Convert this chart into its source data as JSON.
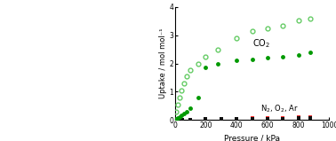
{
  "xlabel": "Pressure / kPa",
  "ylabel": "Uptake / mol mol⁻¹",
  "xlim": [
    0,
    1000
  ],
  "ylim": [
    0,
    4
  ],
  "yticks": [
    0,
    1,
    2,
    3,
    4
  ],
  "xticks": [
    0,
    200,
    400,
    600,
    800,
    1000
  ],
  "co2_ads_x": [
    10,
    20,
    30,
    40,
    60,
    80,
    100,
    150,
    200,
    280,
    400,
    500,
    600,
    700,
    800,
    875
  ],
  "co2_ads_y": [
    0.03,
    0.06,
    0.1,
    0.15,
    0.22,
    0.3,
    0.4,
    0.8,
    1.85,
    2.0,
    2.1,
    2.15,
    2.2,
    2.25,
    2.3,
    2.4
  ],
  "co2_des_x": [
    10,
    20,
    30,
    40,
    60,
    80,
    100,
    150,
    200,
    280,
    400,
    500,
    600,
    700,
    800,
    875
  ],
  "co2_des_y": [
    0.3,
    0.55,
    0.8,
    1.05,
    1.3,
    1.55,
    1.78,
    2.0,
    2.25,
    2.5,
    2.9,
    3.15,
    3.25,
    3.35,
    3.52,
    3.6
  ],
  "n2_x": [
    50,
    100,
    200,
    300,
    400,
    500,
    600,
    700,
    800,
    875
  ],
  "n2_y": [
    0.01,
    0.02,
    0.03,
    0.04,
    0.04,
    0.05,
    0.06,
    0.07,
    0.07,
    0.08
  ],
  "o2_x": [
    50,
    100,
    200,
    300,
    400,
    500,
    600,
    700,
    800,
    875
  ],
  "o2_y": [
    0.01,
    0.02,
    0.03,
    0.04,
    0.05,
    0.06,
    0.07,
    0.08,
    0.09,
    0.1
  ],
  "ar_x": [
    50,
    100,
    200,
    300,
    400,
    500,
    600,
    700,
    800,
    875
  ],
  "ar_y": [
    0.01,
    0.02,
    0.03,
    0.03,
    0.04,
    0.04,
    0.05,
    0.05,
    0.06,
    0.06
  ],
  "co2_color": "#009900",
  "co2_des_color": "#66cc66",
  "n2_color": "#cc0000",
  "o2_color": "#ff3333",
  "ar_color": "#111111",
  "bg_color": "#ffffff",
  "annotation_co2": "CO$_2$",
  "annotation_n2o2ar": "N$_2$, O$_2$, Ar",
  "co2_ann_x": 560,
  "co2_ann_y": 2.72,
  "n2o2ar_ann_x": 680,
  "n2o2ar_ann_y": 0.38,
  "figwidth": 3.78,
  "figheight": 1.59,
  "dpi": 100
}
